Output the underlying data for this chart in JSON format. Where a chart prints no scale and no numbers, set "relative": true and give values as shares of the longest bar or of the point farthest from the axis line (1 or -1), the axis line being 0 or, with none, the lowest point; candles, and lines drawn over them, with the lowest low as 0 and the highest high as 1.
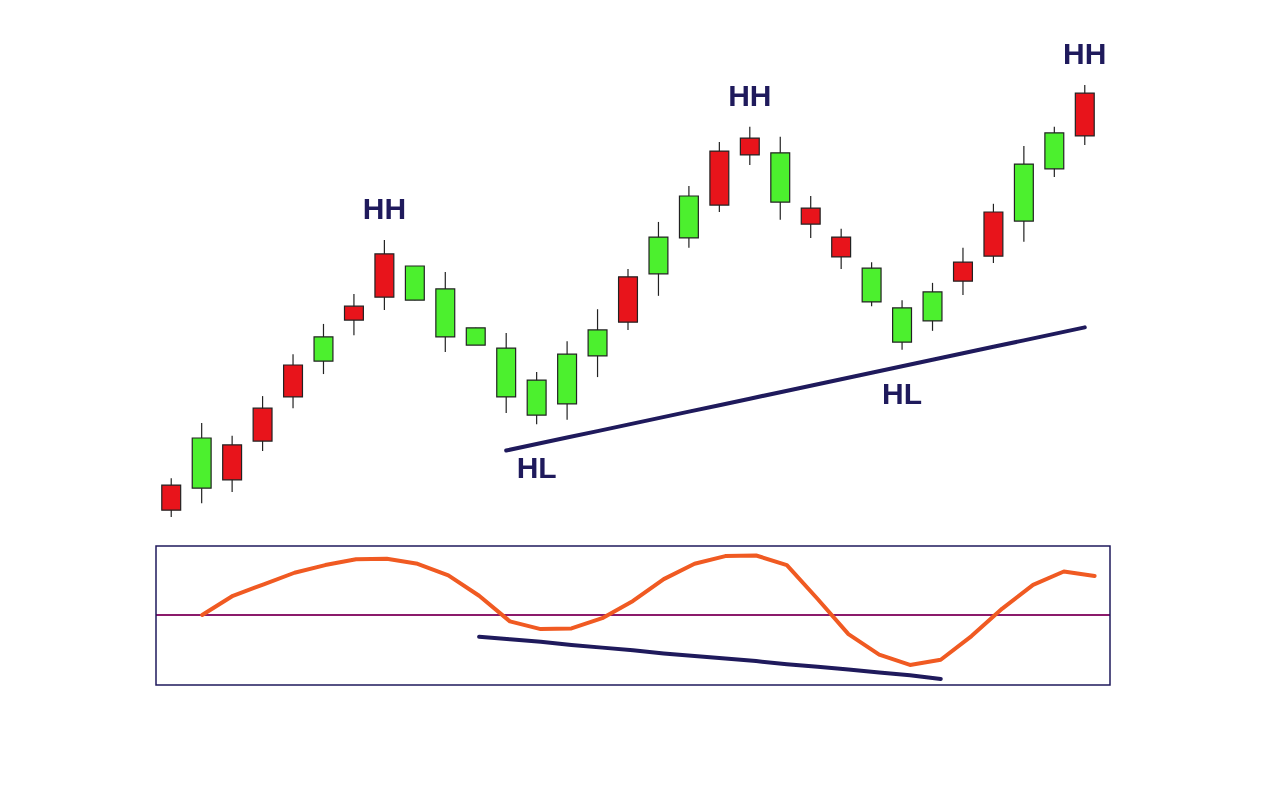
{
  "chart_data": [
    {
      "type": "candlestick",
      "relative": true,
      "categories": [
        null,
        null,
        null,
        null,
        null,
        null,
        null,
        null,
        null,
        null,
        null,
        null,
        null,
        null,
        null,
        null,
        null,
        null,
        null,
        null,
        null,
        null,
        null,
        null,
        null,
        null,
        null,
        null,
        null,
        null,
        null
      ],
      "ohlc": [
        [
          0.074,
          0.09,
          0,
          0.016
        ],
        [
          0.067,
          0.218,
          0.032,
          0.183
        ],
        [
          0.167,
          0.188,
          0.058,
          0.086
        ],
        [
          0.252,
          0.28,
          0.153,
          0.176
        ],
        [
          0.352,
          0.377,
          0.252,
          0.278
        ],
        [
          0.361,
          0.447,
          0.331,
          0.417
        ],
        [
          0.488,
          0.516,
          0.421,
          0.456
        ],
        [
          0.609,
          0.641,
          0.479,
          0.509
        ],
        [
          0.502,
          0.581,
          0.502,
          0.581
        ],
        [
          0.417,
          0.567,
          0.382,
          0.528
        ],
        [
          0.398,
          0.438,
          0.398,
          0.438
        ],
        [
          0.278,
          0.426,
          0.241,
          0.391
        ],
        [
          0.236,
          0.336,
          0.215,
          0.317
        ],
        [
          0.262,
          0.407,
          0.225,
          0.377
        ],
        [
          0.373,
          0.481,
          0.324,
          0.433
        ],
        [
          0.556,
          0.574,
          0.433,
          0.451
        ],
        [
          0.563,
          0.683,
          0.512,
          0.648
        ],
        [
          0.646,
          0.766,
          0.623,
          0.743
        ],
        [
          0.847,
          0.868,
          0.706,
          0.722
        ],
        [
          0.877,
          0.903,
          0.815,
          0.838
        ],
        [
          0.729,
          0.88,
          0.688,
          0.843
        ],
        [
          0.715,
          0.743,
          0.646,
          0.678
        ],
        [
          0.648,
          0.667,
          0.574,
          0.602
        ],
        [
          0.498,
          0.59,
          0.488,
          0.576
        ],
        [
          0.405,
          0.502,
          0.387,
          0.484
        ],
        [
          0.454,
          0.542,
          0.431,
          0.521
        ],
        [
          0.59,
          0.623,
          0.514,
          0.546
        ],
        [
          0.706,
          0.725,
          0.588,
          0.604
        ],
        [
          0.685,
          0.859,
          0.637,
          0.817
        ],
        [
          0.806,
          0.903,
          0.787,
          0.889
        ],
        [
          0.981,
          1,
          0.861,
          0.882
        ]
      ],
      "colors": [
        "#e8141b",
        "#4cf02e",
        "#e8141b",
        "#e8141b",
        "#e8141b",
        "#4cf02e",
        "#e8141b",
        "#e8141b",
        "#4cf02e",
        "#4cf02e",
        "#4cf02e",
        "#4cf02e",
        "#4cf02e",
        "#4cf02e",
        "#4cf02e",
        "#e8141b",
        "#4cf02e",
        "#4cf02e",
        "#e8141b",
        "#e8141b",
        "#4cf02e",
        "#e8141b",
        "#e8141b",
        "#4cf02e",
        "#4cf02e",
        "#4cf02e",
        "#e8141b",
        "#e8141b",
        "#4cf02e",
        "#4cf02e",
        "#e8141b"
      ],
      "series": [
        {
          "type": "line",
          "values": [
            null,
            null,
            null,
            null,
            null,
            null,
            null,
            null,
            null,
            null,
            null,
            0.154,
            0.169,
            0.184,
            0.199,
            0.214,
            0.229,
            0.244,
            0.259,
            0.274,
            0.289,
            0.304,
            0.319,
            0.334,
            0.349,
            0.364,
            0.379,
            0.394,
            0.409,
            0.424,
            0.439
          ],
          "color": "#1f1a5c"
        }
      ],
      "annotations": [
        {
          "text": "HH",
          "y": 0.641
        },
        {
          "text": "HH",
          "y": 0.903
        },
        {
          "text": "HH",
          "y": 1
        },
        {
          "text": "HL",
          "y": 0.215
        },
        {
          "text": "HL",
          "y": 0.387
        }
      ]
    },
    {
      "type": "line",
      "relative": true,
      "categories": [
        null,
        null,
        null,
        null,
        null,
        null,
        null,
        null,
        null,
        null,
        null,
        null,
        null,
        null,
        null,
        null,
        null,
        null,
        null,
        null,
        null,
        null,
        null,
        null,
        null,
        null,
        null,
        null,
        null,
        null,
        null
      ],
      "series": [
        {
          "values": [
            null,
            0,
            0.3,
            0.48,
            0.66,
            0.78,
            0.87,
            0.88,
            0.8,
            0.62,
            0.3,
            -0.1,
            -0.22,
            -0.21,
            -0.05,
            0.22,
            0.56,
            0.8,
            0.92,
            0.93,
            0.78,
            0.25,
            -0.3,
            -0.62,
            -0.78,
            -0.7,
            -0.33,
            0.1,
            0.47,
            0.68,
            0.61
          ],
          "color": "#f05a22"
        },
        {
          "values": [
            null,
            null,
            null,
            null,
            null,
            null,
            null,
            null,
            null,
            null,
            -0.34,
            -0.38,
            -0.42,
            -0.47,
            -0.51,
            -0.55,
            -0.6,
            -0.64,
            -0.68,
            -0.72,
            -0.77,
            -0.81,
            -0.85,
            -0.9,
            -0.94,
            -1,
            null,
            null,
            null,
            null,
            null
          ],
          "color": "#1f1a5c"
        }
      ],
      "ref_lines": [
        {
          "axis": "y",
          "value": 0,
          "color": "#8b1a6b"
        }
      ]
    }
  ]
}
